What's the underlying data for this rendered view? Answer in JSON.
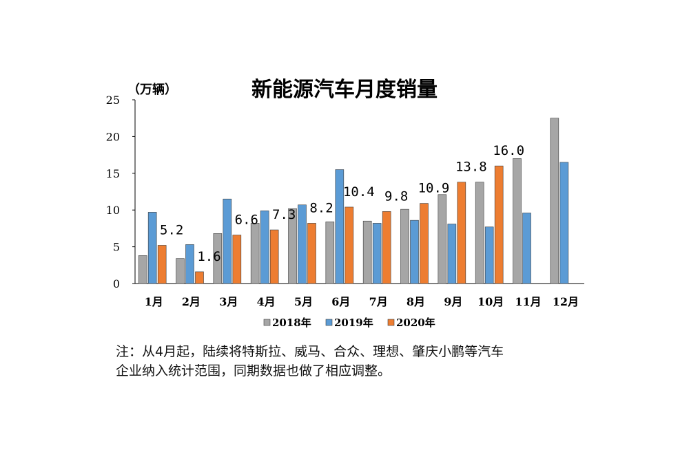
{
  "chart_data": {
    "type": "bar",
    "title": "新能源汽车月度销量",
    "ylabel": "（万辆）",
    "xlabel": "",
    "ylim": [
      0,
      25
    ],
    "yticks": [
      0,
      5,
      10,
      15,
      20,
      25
    ],
    "grid": false,
    "legend": "bottom",
    "categories": [
      "1月",
      "2月",
      "3月",
      "4月",
      "5月",
      "6月",
      "7月",
      "8月",
      "9月",
      "10月",
      "11月",
      "12月"
    ],
    "series": [
      {
        "name": "2018年",
        "color": "#a6a6a6",
        "values": [
          3.8,
          3.4,
          6.8,
          8.2,
          10.2,
          8.4,
          8.5,
          10.1,
          12.1,
          13.8,
          17.0,
          22.5
        ]
      },
      {
        "name": "2019年",
        "color": "#5b9bd5",
        "values": [
          9.7,
          5.3,
          11.5,
          9.9,
          10.7,
          15.5,
          8.2,
          8.6,
          8.1,
          7.7,
          9.6,
          16.5
        ]
      },
      {
        "name": "2020年",
        "color": "#ed7d31",
        "values": [
          5.2,
          1.6,
          6.6,
          7.3,
          8.2,
          10.4,
          9.8,
          10.9,
          13.8,
          16.0,
          null,
          null
        ],
        "labels": [
          "5.2",
          "1.6",
          "6.6",
          "7.3",
          "8.2",
          "10.4",
          "9.8",
          "10.9",
          "13.8",
          "16.0",
          null,
          null
        ]
      }
    ]
  },
  "note": {
    "line1": "注：从4月起，陆续将特斯拉、威马、合众、理想、肇庆小鹏等汽车",
    "line2": "企业纳入统计范围，同期数据也做了相应调整。"
  }
}
